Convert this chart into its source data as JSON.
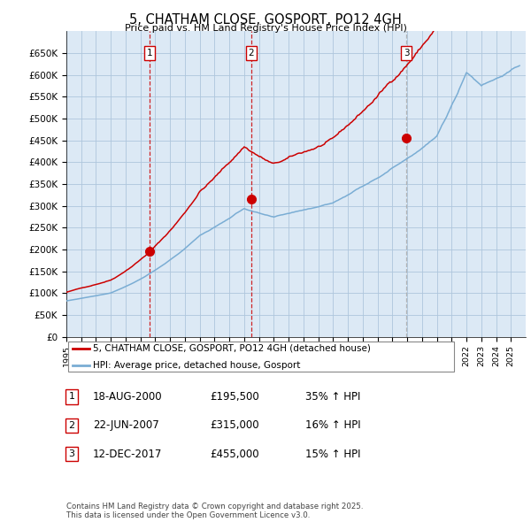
{
  "title": "5, CHATHAM CLOSE, GOSPORT, PO12 4GH",
  "subtitle": "Price paid vs. HM Land Registry's House Price Index (HPI)",
  "background_color": "#ffffff",
  "chart_bg_color": "#dce9f5",
  "grid_color": "#aec6dc",
  "sale_color": "#cc0000",
  "hpi_color": "#7aadd4",
  "ylim": [
    0,
    700000
  ],
  "yticks": [
    0,
    50000,
    100000,
    150000,
    200000,
    250000,
    300000,
    350000,
    400000,
    450000,
    500000,
    550000,
    600000,
    650000
  ],
  "ytick_labels": [
    "£0",
    "£50K",
    "£100K",
    "£150K",
    "£200K",
    "£250K",
    "£300K",
    "£350K",
    "£400K",
    "£450K",
    "£500K",
    "£550K",
    "£600K",
    "£650K"
  ],
  "sale_dates": [
    2000.63,
    2007.47,
    2017.95
  ],
  "sale_prices": [
    195500,
    315000,
    455000
  ],
  "sale_label_dates": [
    "18-AUG-2000",
    "22-JUN-2007",
    "12-DEC-2017"
  ],
  "sale_label_prices": [
    "£195,500",
    "£315,000",
    "£455,000"
  ],
  "sale_label_hpi": [
    "35% ↑ HPI",
    "16% ↑ HPI",
    "15% ↑ HPI"
  ],
  "legend_sale": "5, CHATHAM CLOSE, GOSPORT, PO12 4GH (detached house)",
  "legend_hpi": "HPI: Average price, detached house, Gosport",
  "footnote": "Contains HM Land Registry data © Crown copyright and database right 2025.\nThis data is licensed under the Open Government Licence v3.0.",
  "xmin": 1995,
  "xmax": 2026,
  "sale_vline_colors": [
    "#cc0000",
    "#cc0000",
    "#aaaaaa"
  ],
  "sale_vline_styles": [
    "--",
    "--",
    "--"
  ]
}
